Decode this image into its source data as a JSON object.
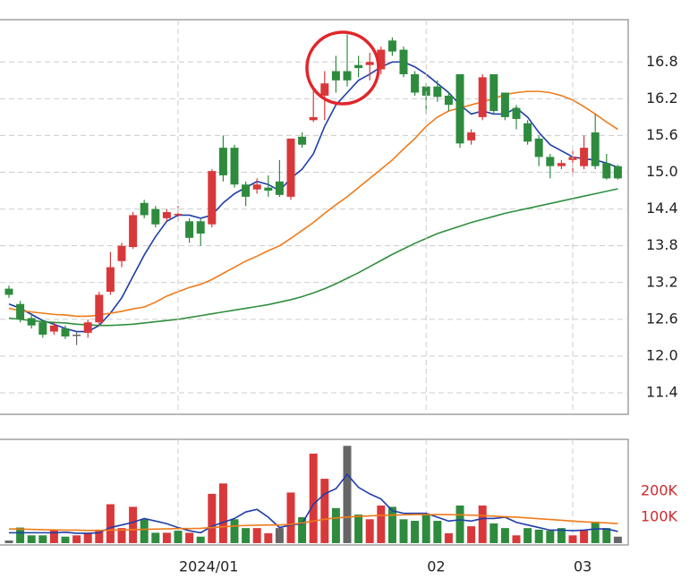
{
  "chart_data": [
    {
      "type": "candlestick",
      "up_color": "#d9383a",
      "down_color": "#2e8b3e",
      "flat_color": "#666666",
      "open": [
        13.1,
        12.85,
        12.62,
        12.55,
        12.4,
        12.45,
        12.35,
        12.38,
        12.55,
        13.05,
        13.55,
        13.78,
        14.5,
        14.4,
        14.25,
        14.3,
        14.2,
        14.2,
        14.15,
        15.4,
        15.4,
        14.8,
        14.72,
        14.75,
        14.85,
        14.6,
        15.58,
        15.85,
        16.25,
        16.65,
        16.65,
        16.75,
        16.75,
        16.68,
        17.15,
        17.0,
        16.6,
        16.4,
        16.4,
        16.25,
        16.6,
        15.52,
        15.9,
        16.6,
        16.3,
        16.05,
        15.8,
        15.55,
        15.25,
        15.1,
        15.2,
        15.1,
        15.65,
        15.15,
        15.1
      ],
      "high": [
        13.15,
        12.9,
        12.7,
        12.6,
        12.55,
        12.5,
        12.4,
        12.6,
        13.05,
        13.7,
        13.85,
        14.35,
        14.55,
        14.45,
        14.4,
        14.45,
        14.25,
        14.25,
        15.05,
        15.6,
        15.45,
        14.85,
        14.9,
        14.95,
        15.2,
        15.55,
        15.65,
        16.4,
        16.65,
        16.9,
        17.25,
        16.9,
        16.95,
        17.05,
        17.2,
        17.05,
        16.65,
        16.45,
        16.5,
        16.3,
        16.6,
        15.7,
        16.6,
        16.6,
        16.3,
        16.1,
        15.85,
        15.6,
        15.3,
        15.2,
        15.35,
        15.6,
        15.95,
        15.3,
        15.12
      ],
      "low": [
        12.95,
        12.55,
        12.45,
        12.3,
        12.35,
        12.28,
        12.18,
        12.3,
        12.5,
        13.0,
        13.45,
        13.75,
        14.25,
        14.1,
        14.2,
        14.2,
        13.85,
        13.8,
        14.1,
        14.85,
        14.75,
        14.45,
        14.65,
        14.6,
        14.6,
        14.55,
        15.4,
        15.82,
        15.85,
        16.3,
        16.4,
        16.55,
        16.5,
        16.6,
        16.9,
        16.55,
        16.25,
        15.95,
        16.15,
        16.0,
        15.4,
        15.45,
        15.85,
        15.95,
        15.85,
        15.7,
        15.45,
        15.1,
        14.9,
        15.05,
        14.95,
        15.05,
        15.05,
        14.88,
        14.88
      ],
      "close": [
        13.0,
        12.6,
        12.5,
        12.35,
        12.5,
        12.32,
        12.35,
        12.55,
        13.0,
        13.45,
        13.8,
        14.3,
        14.3,
        14.15,
        14.35,
        14.32,
        13.93,
        14.0,
        15.02,
        14.95,
        14.8,
        14.6,
        14.8,
        14.7,
        14.63,
        15.55,
        15.45,
        15.9,
        16.45,
        16.5,
        16.5,
        16.7,
        16.8,
        17.0,
        16.97,
        16.6,
        16.3,
        16.25,
        16.23,
        16.1,
        15.47,
        15.65,
        16.55,
        16.0,
        15.9,
        15.87,
        15.5,
        15.25,
        15.1,
        15.15,
        15.25,
        15.4,
        15.1,
        14.9,
        14.9
      ],
      "lines": [
        {
          "color": "#1f3ea8",
          "values": [
            12.85,
            12.78,
            12.68,
            12.58,
            12.52,
            12.45,
            12.4,
            12.4,
            12.5,
            12.7,
            12.95,
            13.3,
            13.65,
            13.95,
            14.2,
            14.3,
            14.3,
            14.25,
            14.3,
            14.5,
            14.65,
            14.75,
            14.85,
            14.8,
            14.7,
            14.9,
            15.05,
            15.3,
            15.75,
            16.1,
            16.3,
            16.5,
            16.6,
            16.72,
            16.8,
            16.8,
            16.72,
            16.6,
            16.45,
            16.3,
            16.1,
            15.95,
            16.0,
            15.95,
            15.95,
            16.05,
            15.9,
            15.65,
            15.45,
            15.35,
            15.25,
            15.22,
            15.2,
            15.15,
            15.08
          ]
        },
        {
          "color": "#f07a1a",
          "values": [
            12.78,
            12.74,
            12.72,
            12.7,
            12.68,
            12.67,
            12.65,
            12.65,
            12.67,
            12.7,
            12.73,
            12.77,
            12.8,
            12.88,
            12.98,
            13.05,
            13.12,
            13.17,
            13.25,
            13.35,
            13.45,
            13.55,
            13.63,
            13.72,
            13.8,
            13.92,
            14.05,
            14.18,
            14.33,
            14.47,
            14.6,
            14.75,
            14.9,
            15.05,
            15.2,
            15.38,
            15.55,
            15.75,
            15.9,
            16.0,
            16.05,
            16.1,
            16.15,
            16.2,
            16.27,
            16.3,
            16.32,
            16.32,
            16.3,
            16.25,
            16.18,
            16.07,
            15.95,
            15.82,
            15.7
          ]
        },
        {
          "color": "#2f8f3f",
          "values": [
            12.62,
            12.6,
            12.58,
            12.56,
            12.55,
            12.54,
            12.52,
            12.51,
            12.5,
            12.5,
            12.51,
            12.52,
            12.54,
            12.56,
            12.58,
            12.6,
            12.63,
            12.66,
            12.69,
            12.72,
            12.75,
            12.78,
            12.81,
            12.84,
            12.88,
            12.92,
            12.97,
            13.03,
            13.1,
            13.18,
            13.27,
            13.36,
            13.46,
            13.56,
            13.66,
            13.75,
            13.84,
            13.92,
            14.0,
            14.06,
            14.12,
            14.18,
            14.23,
            14.28,
            14.33,
            14.37,
            14.41,
            14.45,
            14.49,
            14.53,
            14.57,
            14.61,
            14.65,
            14.69,
            14.73
          ]
        }
      ],
      "ylim": [
        11.05,
        17.49
      ],
      "yticks": [
        11.4,
        {
          "value": 12,
          "label": "12.0"
        },
        12.6,
        13.2,
        13.8,
        14.4,
        {
          "value": 15,
          "label": "15.0"
        },
        15.6,
        16.2,
        16.8
      ],
      "grid": true
    },
    {
      "type": "bar",
      "categories": [
        null,
        null,
        null,
        null,
        null,
        null,
        null,
        null,
        null,
        null,
        null,
        null,
        null,
        null,
        null,
        "2024/01",
        null,
        null,
        null,
        null,
        null,
        null,
        null,
        null,
        null,
        null,
        null,
        null,
        null,
        null,
        null,
        null,
        null,
        null,
        null,
        null,
        null,
        "02",
        null,
        null,
        null,
        null,
        null,
        null,
        null,
        null,
        null,
        null,
        null,
        null,
        "03",
        null,
        null,
        null,
        null
      ],
      "values": [
        10000,
        60000,
        30000,
        30000,
        50000,
        25000,
        30000,
        38000,
        52000,
        150000,
        58000,
        140000,
        92000,
        40000,
        40000,
        48000,
        40000,
        25000,
        190000,
        230000,
        92000,
        58000,
        58000,
        38000,
        58000,
        195000,
        100000,
        345000,
        248000,
        135000,
        375000,
        110000,
        92000,
        145000,
        140000,
        92000,
        86000,
        110000,
        86000,
        38000,
        145000,
        65000,
        145000,
        76000,
        58000,
        30000,
        58000,
        52000,
        48000,
        58000,
        30000,
        52000,
        83000,
        58000,
        25000
      ],
      "colors": [
        "#666666",
        "#2e8b3e",
        "#2e8b3e",
        "#2e8b3e",
        "#d9383a",
        "#2e8b3e",
        "#d9383a",
        "#d9383a",
        "#d9383a",
        "#d9383a",
        "#d9383a",
        "#d9383a",
        "#2e8b3e",
        "#2e8b3e",
        "#d9383a",
        "#2e8b3e",
        "#d9383a",
        "#2e8b3e",
        "#d9383a",
        "#d9383a",
        "#2e8b3e",
        "#2e8b3e",
        "#d9383a",
        "#d9383a",
        "#666666",
        "#d9383a",
        "#2e8b3e",
        "#d9383a",
        "#d9383a",
        "#2e8b3e",
        "#666666",
        "#2e8b3e",
        "#d9383a",
        "#d9383a",
        "#2e8b3e",
        "#2e8b3e",
        "#2e8b3e",
        "#2e8b3e",
        "#2e8b3e",
        "#d9383a",
        "#2e8b3e",
        "#d9383a",
        "#d9383a",
        "#2e8b3e",
        "#2e8b3e",
        "#d9383a",
        "#2e8b3e",
        "#2e8b3e",
        "#2e8b3e",
        "#2e8b3e",
        "#d9383a",
        "#d9383a",
        "#2e8b3e",
        "#2e8b3e",
        "#666666"
      ],
      "lines": [
        {
          "color": "#1f3ea8",
          "values": [
            40000,
            40000,
            40000,
            40000,
            40000,
            42000,
            38000,
            38000,
            40000,
            60000,
            70000,
            80000,
            95000,
            85000,
            75000,
            60000,
            48000,
            40000,
            65000,
            80000,
            95000,
            120000,
            130000,
            100000,
            60000,
            70000,
            75000,
            150000,
            190000,
            210000,
            265000,
            215000,
            190000,
            170000,
            125000,
            115000,
            115000,
            115000,
            100000,
            85000,
            90000,
            85000,
            95000,
            95000,
            100000,
            80000,
            70000,
            60000,
            50000,
            50000,
            48000,
            50000,
            55000,
            55000,
            45000
          ]
        },
        {
          "color": "#f07a1a",
          "values": [
            55000,
            54000,
            53000,
            52000,
            51000,
            50000,
            50000,
            49000,
            49000,
            50000,
            51000,
            52000,
            53000,
            54000,
            55000,
            56000,
            56000,
            57000,
            60000,
            63000,
            66000,
            68000,
            69000,
            70000,
            70000,
            72000,
            78000,
            85000,
            92000,
            97000,
            100000,
            103000,
            105000,
            107000,
            108000,
            109000,
            110000,
            110000,
            110000,
            110000,
            109000,
            108000,
            106000,
            104000,
            102000,
            100000,
            97000,
            94000,
            91000,
            88000,
            85000,
            82000,
            80000,
            78000,
            75000
          ]
        }
      ],
      "ylim": [
        -7000,
        400000
      ],
      "yticks": [
        {
          "value": 100000,
          "label": "100K"
        },
        {
          "value": 200000,
          "label": "200K"
        }
      ],
      "tick_color": "#d0282c"
    }
  ]
}
